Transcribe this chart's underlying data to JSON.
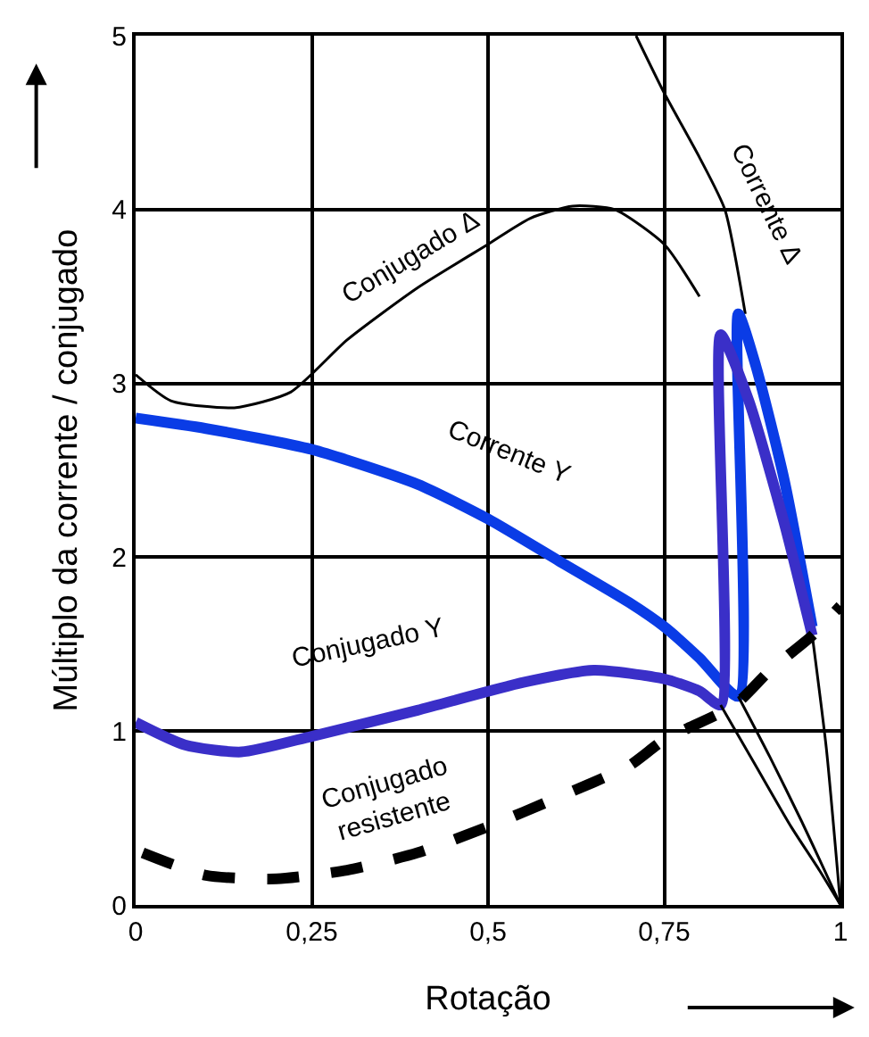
{
  "chart_data": {
    "type": "line",
    "xlabel": "Rotação",
    "ylabel": "Múltiplo da corrente / conjugado",
    "xlim": [
      0,
      1
    ],
    "xticks": [
      0,
      {
        "value": 0.25,
        "label": "0,25"
      },
      {
        "value": 0.5,
        "label": "0,5"
      },
      {
        "value": 0.75,
        "label": "0,75"
      },
      1
    ],
    "ylim": [
      0,
      5
    ],
    "yticks": [
      0,
      1,
      2,
      3,
      4,
      5
    ],
    "grid": true,
    "legend": false,
    "marker": "none",
    "series": [
      {
        "name": "Conjugado Δ",
        "color": "#000000",
        "line_style": "solid",
        "x": [
          0,
          0.05,
          0.14,
          0.22,
          0.3,
          0.4,
          0.5,
          0.56,
          0.62,
          0.68,
          0.75,
          0.8,
          0.83,
          0.87,
          0.92,
          0.96,
          0.98,
          1
        ],
        "values": [
          3.05,
          2.9,
          2.86,
          2.95,
          3.25,
          3.55,
          3.8,
          3.95,
          4.02,
          4.0,
          3.8,
          3.5,
          null,
          null,
          null,
          1.55,
          0.9,
          0
        ]
      },
      {
        "name": "Corrente Δ",
        "color": "#000000",
        "line_style": "solid",
        "x": [
          0.71,
          0.75,
          0.8,
          0.836,
          0.865
        ],
        "values": [
          5,
          4.67,
          4.3,
          4.0,
          3.4
        ]
      },
      {
        "name": "Corrente Y",
        "color": "#0a3ce6",
        "line_style": "solid",
        "x": [
          0,
          0.1,
          0.25,
          0.4,
          0.5,
          0.6,
          0.7,
          0.75,
          0.8,
          0.855,
          0.855,
          0.88,
          0.92,
          0.96
        ],
        "values": [
          2.8,
          2.74,
          2.62,
          2.42,
          2.22,
          1.98,
          1.74,
          1.6,
          1.42,
          1.2,
          3.4,
          3.1,
          2.45,
          1.6
        ]
      },
      {
        "name": "Conjugado Y",
        "color": "#3a2fc8",
        "line_style": "solid",
        "x": [
          0,
          0.07,
          0.15,
          0.25,
          0.4,
          0.55,
          0.65,
          0.75,
          0.8,
          0.83,
          0.83,
          0.87,
          0.92,
          0.96
        ],
        "values": [
          1.05,
          0.92,
          0.88,
          0.97,
          1.12,
          1.28,
          1.35,
          1.3,
          1.23,
          1.15,
          3.28,
          2.9,
          2.2,
          1.55
        ]
      },
      {
        "color": "#000000",
        "line_style": "solid",
        "x": [
          0.83,
          0.88,
          0.93,
          0.97,
          1
        ],
        "values": [
          1.15,
          0.8,
          0.45,
          0.2,
          0
        ]
      },
      {
        "color": "#000000",
        "line_style": "solid",
        "x": [
          0.855,
          0.9,
          0.945,
          0.975,
          1
        ],
        "values": [
          1.2,
          0.85,
          0.48,
          0.22,
          0
        ]
      },
      {
        "name": "Conjugado resistente",
        "color": "#000000",
        "line_style": "dashed",
        "x": [
          0.01,
          0.1,
          0.2,
          0.3,
          0.4,
          0.5,
          0.6,
          0.7,
          0.75,
          0.85,
          0.9,
          0.96,
          1
        ],
        "values": [
          0.3,
          0.17,
          0.15,
          0.2,
          0.3,
          0.45,
          0.62,
          0.8,
          0.95,
          1.15,
          1.35,
          1.55,
          1.72
        ]
      }
    ]
  }
}
